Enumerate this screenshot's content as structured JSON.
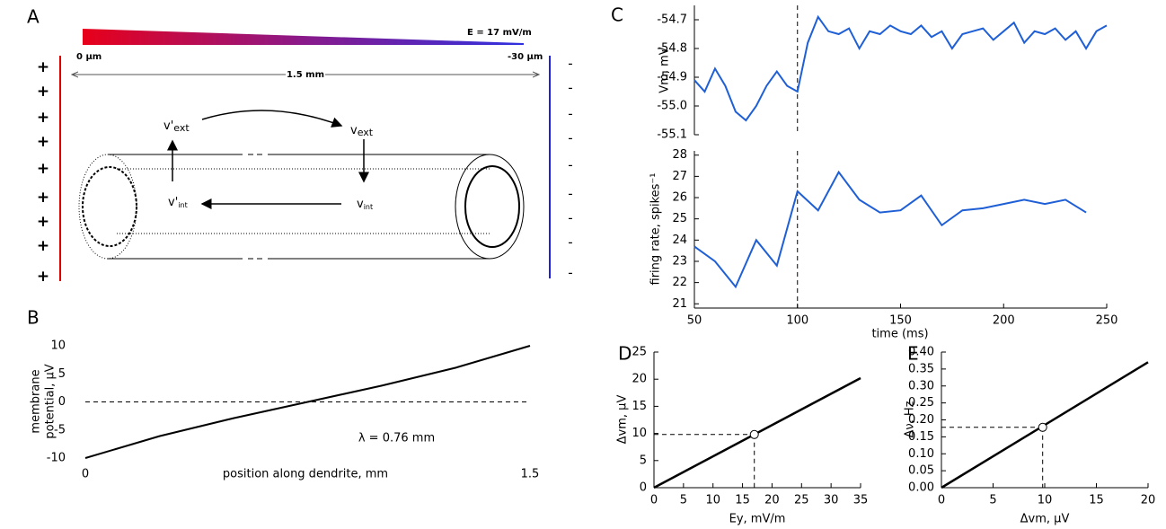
{
  "diagram": {
    "panel": "A",
    "field_label": "E = 17 mV/m",
    "left_depth": "0 µm",
    "right_depth": "-30 µm",
    "length": "1.5 mm",
    "left_signs": [
      "+",
      "+",
      "+",
      "+",
      "+",
      "+",
      "+",
      "+",
      "+"
    ],
    "right_signs": [
      "-",
      "-",
      "-",
      "-",
      "-",
      "-",
      "-",
      "-",
      "-"
    ],
    "potentials": [
      {
        "label": "v'",
        "sub": "ext"
      },
      {
        "label": "v",
        "sub": "ext"
      },
      {
        "label": "v'",
        "sub": "int"
      },
      {
        "label": "v",
        "sub": "int"
      }
    ]
  },
  "chart_data": [
    {
      "panel": "B",
      "type": "line",
      "y_label": [
        "membrane",
        "potential, µV"
      ],
      "x_label": "position along dendrite, mm",
      "x": [
        0,
        0.25,
        0.5,
        0.75,
        1.0,
        1.25,
        1.5
      ],
      "series": [
        {
          "color": "#000000",
          "values": [
            -10,
            -6.1,
            -2.9,
            0,
            2.9,
            6.1,
            10
          ]
        }
      ],
      "xlim": [
        0,
        1.5
      ],
      "ylim": [
        -10,
        10
      ],
      "xticks": [
        0,
        1.5
      ],
      "yticks": [
        -10,
        -5,
        0,
        5,
        10
      ],
      "reference_y": 0,
      "annotation": "λ = 0.76 mm"
    },
    {
      "panel": "C",
      "type": "line",
      "y_label": "Vm, mV",
      "x": [
        50,
        55,
        60,
        65,
        70,
        75,
        80,
        85,
        90,
        95,
        100,
        105,
        110,
        115,
        120,
        125,
        130,
        135,
        140,
        145,
        150,
        155,
        160,
        165,
        170,
        175,
        180,
        185,
        190,
        195,
        200,
        205,
        210,
        215,
        220,
        225,
        230,
        235,
        240,
        245,
        250
      ],
      "series": [
        {
          "color": "#1f5fd6",
          "values": [
            -54.91,
            -54.95,
            -54.87,
            -54.93,
            -55.02,
            -55.05,
            -55.0,
            -54.93,
            -54.88,
            -54.93,
            -54.95,
            -54.78,
            -54.69,
            -54.74,
            -54.75,
            -54.73,
            -54.8,
            -54.74,
            -54.75,
            -54.72,
            -54.74,
            -54.75,
            -54.72,
            -54.76,
            -54.74,
            -54.8,
            -54.75,
            -54.74,
            -54.73,
            -54.77,
            -54.74,
            -54.71,
            -54.78,
            -54.74,
            -54.75,
            -54.73,
            -54.77,
            -54.74,
            -54.8,
            -54.74,
            -54.72
          ]
        }
      ],
      "xlim": [
        50,
        250
      ],
      "ylim": [
        -55.1,
        -54.65
      ],
      "yticks": [
        -55.1,
        {
          "value": -55,
          "label": "-55.0"
        },
        -54.9,
        -54.8,
        -54.7
      ],
      "reference_x": 100
    },
    {
      "type": "line",
      "y_label": "firing rate, spikes⁻¹",
      "x_label": "time (ms)",
      "x": [
        50,
        60,
        70,
        80,
        90,
        100,
        110,
        120,
        130,
        140,
        150,
        160,
        170,
        180,
        190,
        200,
        210,
        220,
        230,
        240
      ],
      "series": [
        {
          "color": "#1f5fd6",
          "values": [
            23.7,
            23.0,
            21.8,
            24.0,
            22.8,
            26.3,
            25.4,
            27.2,
            25.9,
            25.3,
            25.4,
            26.1,
            24.7,
            25.4,
            25.5,
            25.7,
            25.9,
            25.7,
            25.9,
            25.3
          ]
        }
      ],
      "xlim": [
        50,
        250
      ],
      "ylim": [
        20.8,
        28.2
      ],
      "xticks": [
        50,
        100,
        150,
        200,
        250
      ],
      "yticks": [
        21,
        22,
        23,
        24,
        25,
        26,
        27,
        28
      ],
      "reference_x": 100
    },
    {
      "panel": "D",
      "type": "line",
      "y_label": "Δvm, µV",
      "x_label": "Ey, mV/m",
      "x": [
        0,
        35
      ],
      "series": [
        {
          "color": "#000000",
          "values": [
            0,
            20.2
          ]
        }
      ],
      "point": {
        "x": 17,
        "y": 9.8
      },
      "xlim": [
        0,
        35
      ],
      "ylim": [
        0,
        25
      ],
      "xticks": [
        0,
        5,
        10,
        15,
        20,
        25,
        30,
        35
      ],
      "yticks": [
        0,
        5,
        10,
        15,
        20,
        25
      ]
    },
    {
      "panel": "E",
      "type": "line",
      "y_label": "Δν, Hz",
      "x_label": "Δvm, µV",
      "x": [
        0,
        20
      ],
      "series": [
        {
          "color": "#000000",
          "values": [
            0,
            0.37
          ]
        }
      ],
      "point": {
        "x": 9.8,
        "y": 0.178
      },
      "xlim": [
        0,
        20
      ],
      "ylim": [
        0,
        0.4
      ],
      "xticks": [
        0,
        5,
        10,
        15,
        20
      ],
      "yticks": [
        {
          "value": 0,
          "label": "0.00"
        },
        0.05,
        {
          "value": 0.1,
          "label": "0.10"
        },
        0.15,
        {
          "value": 0.2,
          "label": "0.20"
        },
        0.25,
        {
          "value": 0.3,
          "label": "0.30"
        },
        0.35,
        {
          "value": 0.4,
          "label": "0.40"
        }
      ]
    }
  ]
}
